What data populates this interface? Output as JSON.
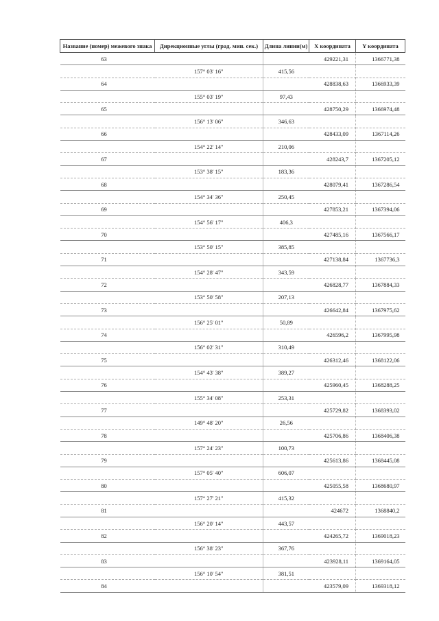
{
  "table": {
    "headers": [
      "Название (номер) межевого знака",
      "Дирекционные углы (град. мин. сек.)",
      "Длина линии(м)",
      "X координата",
      "Y координата"
    ],
    "points": [
      {
        "name": "63",
        "x": "429221,31",
        "y": "1366771,38"
      },
      {
        "name": "64",
        "x": "428838,63",
        "y": "1366933,39"
      },
      {
        "name": "65",
        "x": "428750,29",
        "y": "1366974,48"
      },
      {
        "name": "66",
        "x": "428433,09",
        "y": "1367114,26"
      },
      {
        "name": "67",
        "x": "428243,7",
        "y": "1367205,12"
      },
      {
        "name": "68",
        "x": "428079,41",
        "y": "1367286,54"
      },
      {
        "name": "69",
        "x": "427853,21",
        "y": "1367394,06"
      },
      {
        "name": "70",
        "x": "427485,16",
        "y": "1367566,17"
      },
      {
        "name": "71",
        "x": "427138,84",
        "y": "1367736,3"
      },
      {
        "name": "72",
        "x": "426828,77",
        "y": "1367884,33"
      },
      {
        "name": "73",
        "x": "426642,84",
        "y": "1367975,62"
      },
      {
        "name": "74",
        "x": "426596,2",
        "y": "1367995,98"
      },
      {
        "name": "75",
        "x": "426312,46",
        "y": "1368122,06"
      },
      {
        "name": "76",
        "x": "425960,45",
        "y": "1368288,25"
      },
      {
        "name": "77",
        "x": "425729,82",
        "y": "1368393,02"
      },
      {
        "name": "78",
        "x": "425706,86",
        "y": "1368406,38"
      },
      {
        "name": "79",
        "x": "425613,86",
        "y": "1368445,08"
      },
      {
        "name": "80",
        "x": "425055,58",
        "y": "1368680,97"
      },
      {
        "name": "81",
        "x": "424672",
        "y": "1368840,2"
      },
      {
        "name": "82",
        "x": "424265,72",
        "y": "1369018,23"
      },
      {
        "name": "83",
        "x": "423928,11",
        "y": "1369164,05"
      },
      {
        "name": "84",
        "x": "423579,09",
        "y": "1369318,12"
      }
    ],
    "segments": [
      {
        "angle": "157° 03' 16\"",
        "length": "415,56"
      },
      {
        "angle": "155° 03' 19\"",
        "length": "97,43"
      },
      {
        "angle": "156° 13' 06\"",
        "length": "346,63"
      },
      {
        "angle": "154° 22' 14\"",
        "length": "210,06"
      },
      {
        "angle": "153° 38' 15\"",
        "length": "183,36"
      },
      {
        "angle": "154° 34' 36\"",
        "length": "250,45"
      },
      {
        "angle": "154° 56' 17\"",
        "length": "406,3"
      },
      {
        "angle": "153° 50' 15\"",
        "length": "385,85"
      },
      {
        "angle": "154° 28' 47\"",
        "length": "343,59"
      },
      {
        "angle": "153° 50' 58\"",
        "length": "207,13"
      },
      {
        "angle": "156° 25' 01\"",
        "length": "50,89"
      },
      {
        "angle": "156° 02' 31\"",
        "length": "310,49"
      },
      {
        "angle": "154° 43' 38\"",
        "length": "389,27"
      },
      {
        "angle": "155° 34' 08\"",
        "length": "253,31"
      },
      {
        "angle": "149° 48' 20\"",
        "length": "26,56"
      },
      {
        "angle": "157° 24' 23\"",
        "length": "100,73"
      },
      {
        "angle": "157° 05' 40\"",
        "length": "606,07"
      },
      {
        "angle": "157° 27' 21\"",
        "length": "415,32"
      },
      {
        "angle": "156° 20' 14\"",
        "length": "443,57"
      },
      {
        "angle": "156° 38' 23\"",
        "length": "367,76"
      },
      {
        "angle": "156° 10' 54\"",
        "length": "381,51"
      }
    ]
  }
}
